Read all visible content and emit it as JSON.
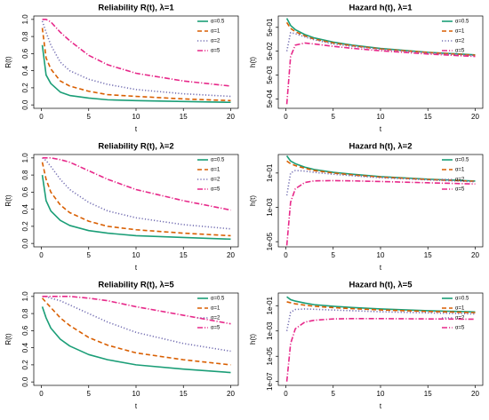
{
  "chart_data": [
    {
      "type": "line",
      "title": "Reliability R(t), λ=1",
      "x_label": "t",
      "y_label": "R(t)",
      "log_scale": false,
      "legend": "topright",
      "x": [
        0.1,
        0.5,
        1,
        2,
        3,
        5,
        7,
        10,
        15,
        20
      ],
      "xlim": [
        -0.8,
        20.8
      ],
      "xticks": [
        0,
        5,
        10,
        15,
        20
      ],
      "ylim": [
        -0.04,
        1.04
      ],
      "yticks": [
        {
          "value": 0,
          "label": "0.0"
        },
        0.2,
        0.4,
        0.6,
        0.8,
        {
          "value": 1,
          "label": "1.0"
        }
      ],
      "series": [
        {
          "name": "α=0.5",
          "color": "#1b9e77",
          "line_style": "solid",
          "values": [
            0.7,
            0.35,
            0.25,
            0.15,
            0.11,
            0.08,
            0.06,
            0.05,
            0.04,
            0.03
          ]
        },
        {
          "name": "α=1",
          "color": "#d95f02",
          "line_style": "dashed",
          "values": [
            0.9,
            0.55,
            0.42,
            0.28,
            0.22,
            0.16,
            0.12,
            0.1,
            0.07,
            0.05
          ]
        },
        {
          "name": "α=2",
          "color": "#7570b3",
          "line_style": "dotted",
          "values": [
            0.98,
            0.85,
            0.7,
            0.5,
            0.4,
            0.3,
            0.24,
            0.18,
            0.13,
            0.1
          ]
        },
        {
          "name": "α=5",
          "color": "#e7298a",
          "line_style": "dotdash",
          "values": [
            1.0,
            1.0,
            0.97,
            0.85,
            0.75,
            0.58,
            0.47,
            0.37,
            0.28,
            0.22
          ]
        }
      ]
    },
    {
      "type": "line",
      "title": "Hazard h(t), λ=1",
      "x_label": "t",
      "y_label": "h(t)",
      "log_scale": true,
      "legend": "topright",
      "x": [
        0.1,
        0.5,
        1,
        2,
        3,
        5,
        7,
        10,
        15,
        20
      ],
      "xlim": [
        -0.8,
        20.8
      ],
      "xticks": [
        0,
        5,
        10,
        15,
        20
      ],
      "ylim": [
        0.0002,
        1.5
      ],
      "yticks": [
        {
          "value": 0.0005,
          "label": "5e-04"
        },
        {
          "value": 0.005,
          "label": "5e-03"
        },
        {
          "value": 0.05,
          "label": "5e-02"
        },
        {
          "value": 0.5,
          "label": "5e-01"
        }
      ],
      "series": [
        {
          "name": "α=0.5",
          "color": "#1b9e77",
          "line_style": "solid",
          "values": [
            1.2,
            0.6,
            0.4,
            0.25,
            0.18,
            0.12,
            0.09,
            0.065,
            0.045,
            0.035
          ]
        },
        {
          "name": "α=1",
          "color": "#d95f02",
          "line_style": "dashed",
          "values": [
            0.8,
            0.45,
            0.33,
            0.22,
            0.16,
            0.11,
            0.085,
            0.062,
            0.044,
            0.034
          ]
        },
        {
          "name": "α=2",
          "color": "#7570b3",
          "line_style": "dotted",
          "values": [
            0.05,
            0.3,
            0.27,
            0.2,
            0.15,
            0.1,
            0.08,
            0.06,
            0.042,
            0.033
          ]
        },
        {
          "name": "α=5",
          "color": "#e7298a",
          "line_style": "dotdash",
          "values": [
            0.0003,
            0.03,
            0.09,
            0.11,
            0.1,
            0.08,
            0.066,
            0.052,
            0.038,
            0.03
          ]
        }
      ]
    },
    {
      "type": "line",
      "title": "Reliability R(t), λ=2",
      "x_label": "t",
      "y_label": "R(t)",
      "log_scale": false,
      "legend": "topright",
      "x": [
        0.1,
        0.5,
        1,
        2,
        3,
        5,
        7,
        10,
        15,
        20
      ],
      "xlim": [
        -0.8,
        20.8
      ],
      "xticks": [
        0,
        5,
        10,
        15,
        20
      ],
      "ylim": [
        -0.04,
        1.04
      ],
      "yticks": [
        {
          "value": 0,
          "label": "0.0"
        },
        0.2,
        0.4,
        0.6,
        0.8,
        {
          "value": 1,
          "label": "1.0"
        }
      ],
      "series": [
        {
          "name": "α=0.5",
          "color": "#1b9e77",
          "line_style": "solid",
          "values": [
            0.8,
            0.5,
            0.38,
            0.27,
            0.21,
            0.15,
            0.12,
            0.09,
            0.07,
            0.05
          ]
        },
        {
          "name": "α=1",
          "color": "#d95f02",
          "line_style": "dashed",
          "values": [
            0.95,
            0.75,
            0.6,
            0.45,
            0.36,
            0.26,
            0.2,
            0.16,
            0.12,
            0.09
          ]
        },
        {
          "name": "α=2",
          "color": "#7570b3",
          "line_style": "dotted",
          "values": [
            1.0,
            0.97,
            0.9,
            0.75,
            0.63,
            0.48,
            0.38,
            0.3,
            0.22,
            0.17
          ]
        },
        {
          "name": "α=5",
          "color": "#e7298a",
          "line_style": "dotdash",
          "values": [
            1.0,
            1.0,
            1.0,
            0.98,
            0.95,
            0.85,
            0.75,
            0.63,
            0.5,
            0.39
          ]
        }
      ]
    },
    {
      "type": "line",
      "title": "Hazard h(t), λ=2",
      "x_label": "t",
      "y_label": "h(t)",
      "log_scale": true,
      "legend": "topright",
      "x": [
        0.1,
        0.5,
        1,
        2,
        3,
        5,
        7,
        10,
        15,
        20
      ],
      "xlim": [
        -0.8,
        20.8
      ],
      "xticks": [
        0,
        5,
        10,
        15,
        20
      ],
      "ylim": [
        5e-06,
        1.2
      ],
      "yticks": [
        {
          "value": 1e-05,
          "label": "1e-05"
        },
        {
          "value": 0.001,
          "label": "1e-03"
        },
        {
          "value": 0.1,
          "label": "1e-01"
        }
      ],
      "series": [
        {
          "name": "α=0.5",
          "color": "#1b9e77",
          "line_style": "solid",
          "values": [
            1.0,
            0.5,
            0.35,
            0.22,
            0.16,
            0.11,
            0.085,
            0.062,
            0.044,
            0.034
          ]
        },
        {
          "name": "α=1",
          "color": "#d95f02",
          "line_style": "dashed",
          "values": [
            0.5,
            0.35,
            0.27,
            0.19,
            0.14,
            0.1,
            0.078,
            0.058,
            0.042,
            0.033
          ]
        },
        {
          "name": "α=2",
          "color": "#7570b3",
          "line_style": "dotted",
          "values": [
            0.005,
            0.1,
            0.14,
            0.13,
            0.11,
            0.085,
            0.07,
            0.053,
            0.04,
            0.031
          ]
        },
        {
          "name": "α=5",
          "color": "#e7298a",
          "line_style": "dotdash",
          "values": [
            6e-06,
            0.002,
            0.012,
            0.028,
            0.035,
            0.036,
            0.035,
            0.032,
            0.027,
            0.023
          ]
        }
      ]
    },
    {
      "type": "line",
      "title": "Reliability R(t), λ=5",
      "x_label": "t",
      "y_label": "R(t)",
      "log_scale": false,
      "legend": "topright",
      "x": [
        0.1,
        0.5,
        1,
        2,
        3,
        5,
        7,
        10,
        15,
        20
      ],
      "xlim": [
        -0.8,
        20.8
      ],
      "xticks": [
        0,
        5,
        10,
        15,
        20
      ],
      "ylim": [
        -0.04,
        1.04
      ],
      "yticks": [
        {
          "value": 0,
          "label": "0.0"
        },
        0.2,
        0.4,
        0.6,
        0.8,
        {
          "value": 1,
          "label": "1.0"
        }
      ],
      "series": [
        {
          "name": "α=0.5",
          "color": "#1b9e77",
          "line_style": "solid",
          "values": [
            0.88,
            0.75,
            0.63,
            0.5,
            0.42,
            0.32,
            0.26,
            0.2,
            0.15,
            0.11
          ]
        },
        {
          "name": "α=1",
          "color": "#d95f02",
          "line_style": "dashed",
          "values": [
            0.98,
            0.93,
            0.87,
            0.75,
            0.66,
            0.52,
            0.43,
            0.34,
            0.26,
            0.2
          ]
        },
        {
          "name": "α=2",
          "color": "#7570b3",
          "line_style": "dotted",
          "values": [
            1.0,
            1.0,
            0.98,
            0.95,
            0.9,
            0.8,
            0.7,
            0.58,
            0.45,
            0.36
          ]
        },
        {
          "name": "α=5",
          "color": "#e7298a",
          "line_style": "dotdash",
          "values": [
            1.0,
            1.0,
            1.0,
            1.0,
            1.0,
            0.98,
            0.95,
            0.88,
            0.78,
            0.68
          ]
        }
      ]
    },
    {
      "type": "line",
      "title": "Hazard h(t), λ=5",
      "x_label": "t",
      "y_label": "h(t)",
      "log_scale": true,
      "legend": "topright",
      "x": [
        0.1,
        0.5,
        1,
        2,
        3,
        5,
        7,
        10,
        15,
        20
      ],
      "xlim": [
        -0.8,
        20.8
      ],
      "xticks": [
        0,
        5,
        10,
        15,
        20
      ],
      "ylim": [
        5e-08,
        1
      ],
      "yticks": [
        {
          "value": 1e-07,
          "label": "1e-07"
        },
        {
          "value": 1e-05,
          "label": "1e-05"
        },
        {
          "value": 0.001,
          "label": "1e-03"
        },
        {
          "value": 0.1,
          "label": "1e-01"
        }
      ],
      "series": [
        {
          "name": "α=0.5",
          "color": "#1b9e77",
          "line_style": "solid",
          "values": [
            0.5,
            0.3,
            0.23,
            0.16,
            0.12,
            0.09,
            0.072,
            0.055,
            0.04,
            0.032
          ]
        },
        {
          "name": "α=1",
          "color": "#d95f02",
          "line_style": "dashed",
          "values": [
            0.2,
            0.17,
            0.14,
            0.11,
            0.09,
            0.07,
            0.058,
            0.046,
            0.035,
            0.028
          ]
        },
        {
          "name": "α=2",
          "color": "#7570b3",
          "line_style": "dotted",
          "values": [
            0.001,
            0.03,
            0.05,
            0.055,
            0.052,
            0.045,
            0.04,
            0.033,
            0.027,
            0.022
          ]
        },
        {
          "name": "α=5",
          "color": "#e7298a",
          "line_style": "dotdash",
          "values": [
            1e-07,
            0.0001,
            0.0015,
            0.005,
            0.007,
            0.009,
            0.0095,
            0.0095,
            0.009,
            0.0085
          ]
        }
      ]
    }
  ]
}
